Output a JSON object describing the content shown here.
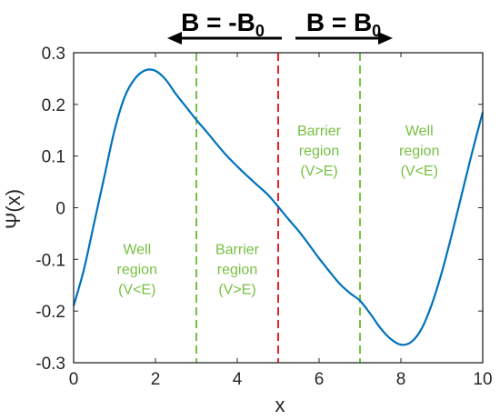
{
  "chart_data": {
    "type": "line",
    "xlabel": "x",
    "ylabel": "Ψ(x)",
    "xlim": [
      0,
      10
    ],
    "ylim": [
      -0.3,
      0.3
    ],
    "xticks": [
      "0",
      "2",
      "4",
      "6",
      "8",
      "10"
    ],
    "yticks": [
      "-0.3",
      "-0.2",
      "-0.1",
      "0",
      "0.1",
      "0.2",
      "0.3"
    ],
    "grid": false,
    "series": [
      {
        "color": "#0072BD",
        "x": [
          0,
          0.25,
          0.5,
          0.75,
          1,
          1.25,
          1.5,
          1.75,
          2,
          2.25,
          2.5,
          2.75,
          3,
          3.25,
          3.5,
          3.75,
          4,
          4.25,
          4.5,
          4.75,
          5,
          5.25,
          5.5,
          5.75,
          6,
          6.25,
          6.5,
          6.75,
          7,
          7.25,
          7.5,
          7.75,
          8,
          8.25,
          8.5,
          8.75,
          9,
          9.25,
          9.5,
          9.75,
          10
        ],
        "y": [
          -0.19,
          -0.12,
          -0.03,
          0.06,
          0.15,
          0.215,
          0.25,
          0.266,
          0.265,
          0.248,
          0.22,
          0.195,
          0.17,
          0.147,
          0.123,
          0.1,
          0.08,
          0.061,
          0.043,
          0.025,
          0.002,
          -0.022,
          -0.045,
          -0.071,
          -0.098,
          -0.123,
          -0.147,
          -0.165,
          -0.18,
          -0.205,
          -0.233,
          -0.254,
          -0.265,
          -0.26,
          -0.235,
          -0.188,
          -0.125,
          -0.05,
          0.03,
          0.11,
          0.185
        ]
      }
    ],
    "vlines": [
      {
        "x": 3,
        "color": "#77C043",
        "style": "dashed"
      },
      {
        "x": 5,
        "color": "#E8202A",
        "style": "dashed"
      },
      {
        "x": 7,
        "color": "#77C043",
        "style": "dashed"
      }
    ],
    "annotations": [
      {
        "lines": [
          "Well",
          "region",
          "(V<E)"
        ],
        "x": 1.55,
        "y": -0.09,
        "color": "#77C043"
      },
      {
        "lines": [
          "Barrier",
          "region",
          "(V>E)"
        ],
        "x": 4.0,
        "y": -0.09,
        "color": "#77C043"
      },
      {
        "lines": [
          "Barrier",
          "region",
          "(V>E)"
        ],
        "x": 6.0,
        "y": 0.14,
        "color": "#77C043"
      },
      {
        "lines": [
          "Well",
          "region",
          "(V<E)"
        ],
        "x": 8.45,
        "y": 0.14,
        "color": "#77C043"
      }
    ],
    "field_labels": {
      "left": {
        "main": "B = -B",
        "sub": "0",
        "arrow": "left"
      },
      "right": {
        "main": "B = B",
        "sub": "0",
        "arrow": "right"
      }
    }
  }
}
